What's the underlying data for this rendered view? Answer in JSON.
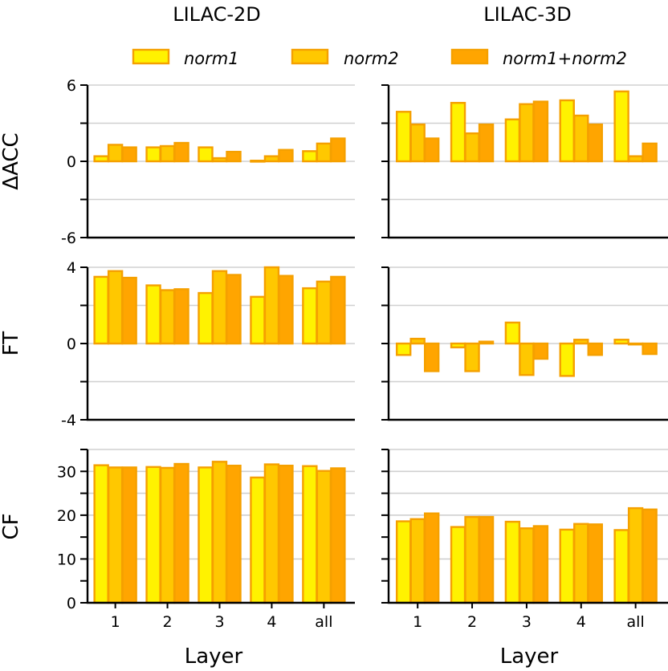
{
  "chart_data": {
    "type": "bar",
    "column_titles": [
      "LILAC-2D",
      "LILAC-3D"
    ],
    "categories": [
      "1",
      "2",
      "3",
      "4",
      "all"
    ],
    "xlabel": "Layer",
    "legend": {
      "placement": "top",
      "entries": [
        {
          "name": "norm1",
          "fill": "#fff200",
          "edge": "#f5a000"
        },
        {
          "name": "norm2",
          "fill": "#ffc800",
          "edge": "#f5a000"
        },
        {
          "name": "norm1+norm2",
          "fill": "#ffa500",
          "edge": "#f5a000"
        }
      ]
    },
    "panels": [
      {
        "row": "ΔACC",
        "ylabel": "ΔACC",
        "ylim": [
          -6,
          6
        ],
        "ticks_labeled": [
          -6,
          0,
          6
        ],
        "tick_labels": [
          "-6",
          "0",
          "6"
        ],
        "ticks_minor": [
          -3,
          3
        ],
        "grid": [
          -6,
          -3,
          0,
          3,
          6
        ],
        "columns": [
          {
            "dataset": "LILAC-2D",
            "series": [
              {
                "name": "norm1",
                "values": [
                  0.4,
                  1.1,
                  1.1,
                  0.05,
                  0.8
                ]
              },
              {
                "name": "norm2",
                "values": [
                  1.3,
                  1.2,
                  0.25,
                  0.4,
                  1.4
                ]
              },
              {
                "name": "norm1+norm2",
                "values": [
                  1.1,
                  1.45,
                  0.75,
                  0.9,
                  1.8
                ]
              }
            ]
          },
          {
            "dataset": "LILAC-3D",
            "series": [
              {
                "name": "norm1",
                "values": [
                  3.9,
                  4.6,
                  3.3,
                  4.8,
                  5.5
                ]
              },
              {
                "name": "norm2",
                "values": [
                  2.9,
                  2.2,
                  4.5,
                  3.6,
                  0.4
                ]
              },
              {
                "name": "norm1+norm2",
                "values": [
                  1.8,
                  2.9,
                  4.7,
                  2.9,
                  1.4
                ]
              }
            ]
          }
        ]
      },
      {
        "row": "FT",
        "ylabel": "FT",
        "ylim": [
          -4,
          4
        ],
        "ticks_labeled": [
          -4,
          0,
          4
        ],
        "tick_labels": [
          "-4",
          "0",
          "4"
        ],
        "ticks_minor": [
          -2,
          2
        ],
        "grid": [
          -4,
          -2,
          0,
          2,
          4
        ],
        "columns": [
          {
            "dataset": "LILAC-2D",
            "series": [
              {
                "name": "norm1",
                "values": [
                  3.5,
                  3.05,
                  2.65,
                  2.45,
                  2.9
                ]
              },
              {
                "name": "norm2",
                "values": [
                  3.8,
                  2.8,
                  3.8,
                  4.0,
                  3.25
                ]
              },
              {
                "name": "norm1+norm2",
                "values": [
                  3.45,
                  2.85,
                  3.6,
                  3.55,
                  3.5
                ]
              }
            ]
          },
          {
            "dataset": "LILAC-3D",
            "series": [
              {
                "name": "norm1",
                "values": [
                  -0.6,
                  -0.2,
                  1.1,
                  -1.7,
                  0.2
                ]
              },
              {
                "name": "norm2",
                "values": [
                  0.25,
                  -1.45,
                  -1.65,
                  0.2,
                  -0.05
                ]
              },
              {
                "name": "norm1+norm2",
                "values": [
                  -1.45,
                  0.1,
                  -0.8,
                  -0.6,
                  -0.55
                ]
              }
            ]
          }
        ]
      },
      {
        "row": "CF",
        "ylabel": "CF",
        "ylim": [
          0,
          35
        ],
        "ticks_labeled": [
          0,
          10,
          20,
          30
        ],
        "tick_labels": [
          "0",
          "10",
          "20",
          "30"
        ],
        "ticks_minor": [
          5,
          15,
          25,
          35
        ],
        "grid": [
          10,
          20,
          25,
          30,
          35
        ],
        "columns": [
          {
            "dataset": "LILAC-2D",
            "series": [
              {
                "name": "norm1",
                "values": [
                  31.4,
                  31.0,
                  30.9,
                  28.6,
                  31.2
                ]
              },
              {
                "name": "norm2",
                "values": [
                  30.9,
                  30.8,
                  32.2,
                  31.6,
                  30.1
                ]
              },
              {
                "name": "norm1+norm2",
                "values": [
                  30.9,
                  31.7,
                  31.3,
                  31.3,
                  30.7
                ]
              }
            ]
          },
          {
            "dataset": "LILAC-3D",
            "series": [
              {
                "name": "norm1",
                "values": [
                  18.6,
                  17.3,
                  18.5,
                  16.7,
                  16.6
                ]
              },
              {
                "name": "norm2",
                "values": [
                  19.1,
                  19.6,
                  17.0,
                  18.0,
                  21.6
                ]
              },
              {
                "name": "norm1+norm2",
                "values": [
                  20.4,
                  19.6,
                  17.5,
                  17.9,
                  21.3
                ]
              }
            ]
          }
        ]
      }
    ]
  }
}
